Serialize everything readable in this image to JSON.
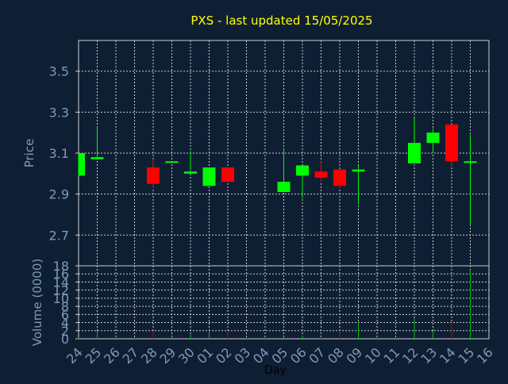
{
  "chart_data": {
    "type": "candlestick",
    "title": "PXS - last updated 15/05/2025",
    "colors": {
      "background": "#0f1f33",
      "grid": "#c8ccd0",
      "axis_text": "#7f9ab5",
      "title": "#ffff00",
      "up": "#00ff00",
      "down": "#ff0000",
      "up_volume": "#00c000",
      "down_volume": "#c00000"
    },
    "x_label": "Day",
    "x_tick_labels": [
      "24",
      "25",
      "26",
      "27",
      "28",
      "29",
      "30",
      "01",
      "02",
      "03",
      "04",
      "05",
      "06",
      "07",
      "08",
      "09",
      "10",
      "11",
      "12",
      "13",
      "14",
      "15",
      "16"
    ],
    "price_panel": {
      "ylabel": "Price",
      "ylim": [
        2.55,
        3.65
      ],
      "yticks": [
        "2.7",
        "2.9",
        "3.1",
        "3.3",
        "3.5"
      ]
    },
    "volume_panel": {
      "ylabel": "Volume (0000)",
      "ylim": [
        0,
        18
      ],
      "yticks": [
        "0",
        "2",
        "4",
        "6",
        "8",
        "10",
        "12",
        "14",
        "16",
        "18"
      ]
    },
    "candles": [
      {
        "x": "24",
        "open": 2.99,
        "close": 3.1,
        "high": 3.1,
        "low": 2.99,
        "volume": 0.3
      },
      {
        "x": "25",
        "open": 3.07,
        "close": 3.08,
        "high": 3.23,
        "low": 3.07,
        "volume": 2.0
      },
      {
        "x": "28",
        "open": 3.03,
        "close": 2.95,
        "high": 3.07,
        "low": 2.93,
        "volume": 2.0
      },
      {
        "x": "29",
        "open": 3.06,
        "close": 3.06,
        "high": 3.06,
        "low": 3.06,
        "volume": 0.5
      },
      {
        "x": "30",
        "open": 3.0,
        "close": 3.01,
        "high": 3.11,
        "low": 3.0,
        "volume": 1.0
      },
      {
        "x": "01",
        "open": 2.94,
        "close": 3.03,
        "high": 3.03,
        "low": 2.94,
        "volume": 2.0
      },
      {
        "x": "02",
        "open": 3.03,
        "close": 2.96,
        "high": 3.03,
        "low": 2.96,
        "volume": 2.0
      },
      {
        "x": "05",
        "open": 2.91,
        "close": 2.96,
        "high": 3.12,
        "low": 2.91,
        "volume": 0.5
      },
      {
        "x": "06",
        "open": 2.99,
        "close": 3.04,
        "high": 3.04,
        "low": 2.88,
        "volume": 0.8
      },
      {
        "x": "07",
        "open": 3.01,
        "close": 2.98,
        "high": 3.06,
        "low": 2.96,
        "volume": 0.3
      },
      {
        "x": "08",
        "open": 3.02,
        "close": 2.94,
        "high": 3.02,
        "low": 2.93,
        "volume": 1.5
      },
      {
        "x": "09",
        "open": 3.01,
        "close": 3.02,
        "high": 3.04,
        "low": 2.85,
        "volume": 4.0
      },
      {
        "x": "12",
        "open": 3.05,
        "close": 3.15,
        "high": 3.27,
        "low": 3.05,
        "volume": 5.0
      },
      {
        "x": "13",
        "open": 3.15,
        "close": 3.2,
        "high": 3.22,
        "low": 3.1,
        "volume": 2.0
      },
      {
        "x": "14",
        "open": 3.24,
        "close": 3.06,
        "high": 3.24,
        "low": 3.04,
        "volume": 4.0
      },
      {
        "x": "15",
        "open": 3.06,
        "close": 3.06,
        "high": 3.19,
        "low": 2.75,
        "volume": 17.0
      }
    ]
  }
}
